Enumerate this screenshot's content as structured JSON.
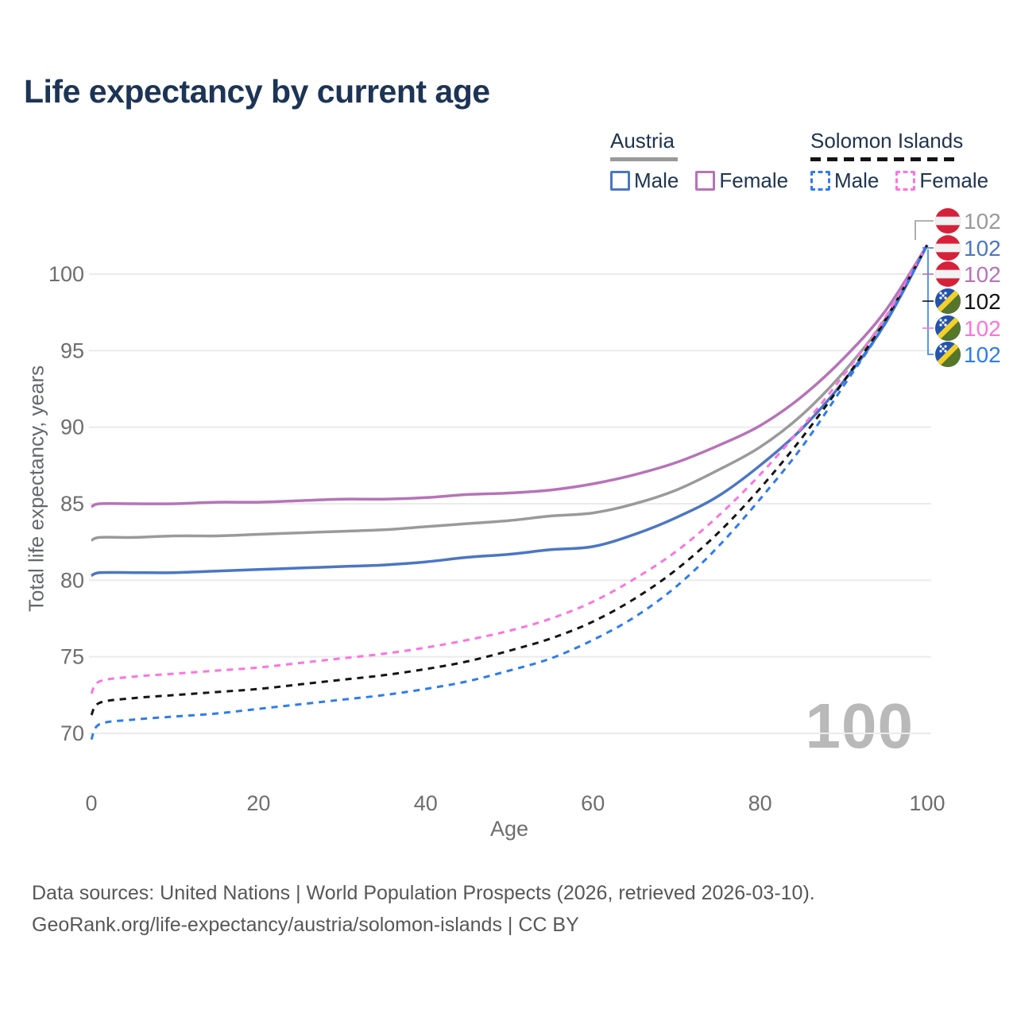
{
  "header": {
    "title": "Life expectancy by current age"
  },
  "legend": {
    "groups": [
      {
        "name": "Austria",
        "line_style": "solid",
        "line_color": "#9a9a9a",
        "items": [
          {
            "label": "Male",
            "color": "#4b76c5",
            "dashed": false
          },
          {
            "label": "Female",
            "color": "#b673b9",
            "dashed": false
          }
        ]
      },
      {
        "name": "Solomon Islands",
        "line_style": "dashed",
        "line_color": "#141414",
        "items": [
          {
            "label": "Male",
            "color": "#2e7ced",
            "dashed": true
          },
          {
            "label": "Female",
            "color": "#fc74de",
            "dashed": true
          }
        ]
      }
    ]
  },
  "chart_data": {
    "type": "line",
    "title": "Life expectancy by current age",
    "xlabel": "Age",
    "ylabel": "Total life expectancy, years",
    "x_ticks": [
      0,
      20,
      40,
      60,
      80,
      100
    ],
    "y_ticks": [
      70,
      75,
      80,
      85,
      90,
      95,
      100
    ],
    "xlim": [
      0,
      100
    ],
    "ylim": [
      68,
      103.5
    ],
    "grid": "horizontal",
    "legend_position": "top-right",
    "age_indicator": "100",
    "watermark": "100",
    "ages": [
      0,
      1,
      5,
      10,
      15,
      20,
      25,
      30,
      35,
      40,
      45,
      50,
      55,
      60,
      65,
      70,
      75,
      80,
      85,
      90,
      95,
      100
    ],
    "series": [
      {
        "id": "austria-all",
        "name": "Austria (both sexes)",
        "country": "Austria",
        "sex": "all",
        "color": "#9a9a9a",
        "dashed": false,
        "values": [
          82.6,
          82.8,
          82.8,
          82.9,
          82.9,
          83.0,
          83.1,
          83.2,
          83.3,
          83.5,
          83.7,
          83.9,
          84.2,
          84.4,
          85.0,
          85.9,
          87.2,
          88.7,
          90.8,
          93.6,
          97.1,
          101.9
        ]
      },
      {
        "id": "austria-male",
        "name": "Austria Male",
        "country": "Austria",
        "sex": "male",
        "color": "#4b76c5",
        "dashed": false,
        "values": [
          80.3,
          80.5,
          80.5,
          80.5,
          80.6,
          80.7,
          80.8,
          80.9,
          81.0,
          81.2,
          81.5,
          81.7,
          82.0,
          82.2,
          83.0,
          84.1,
          85.5,
          87.5,
          89.9,
          93.0,
          96.8,
          101.9
        ]
      },
      {
        "id": "austria-female",
        "name": "Austria Female",
        "country": "Austria",
        "sex": "female",
        "color": "#b673b9",
        "dashed": false,
        "values": [
          84.8,
          85.0,
          85.0,
          85.0,
          85.1,
          85.1,
          85.2,
          85.3,
          85.3,
          85.4,
          85.6,
          85.7,
          85.9,
          86.3,
          86.9,
          87.7,
          88.8,
          90.1,
          92.0,
          94.5,
          97.6,
          101.9
        ]
      },
      {
        "id": "solomon-all",
        "name": "Solomon Islands (both sexes)",
        "country": "Solomon Islands",
        "sex": "all",
        "color": "#141414",
        "dashed": true,
        "values": [
          71.2,
          72.0,
          72.3,
          72.5,
          72.7,
          72.9,
          73.2,
          73.5,
          73.8,
          74.2,
          74.7,
          75.4,
          76.2,
          77.3,
          78.8,
          80.7,
          83.1,
          86.0,
          89.3,
          93.0,
          97.0,
          101.9
        ]
      },
      {
        "id": "solomon-female",
        "name": "Solomon Islands Female",
        "country": "Solomon Islands",
        "sex": "female",
        "color": "#fc74de",
        "dashed": true,
        "values": [
          72.6,
          73.4,
          73.7,
          73.9,
          74.1,
          74.3,
          74.6,
          74.9,
          75.2,
          75.6,
          76.1,
          76.7,
          77.5,
          78.6,
          80.1,
          81.9,
          84.2,
          86.9,
          90.0,
          93.4,
          97.2,
          101.9
        ]
      },
      {
        "id": "solomon-male",
        "name": "Solomon Islands Male",
        "country": "Solomon Islands",
        "sex": "male",
        "color": "#2e7ced",
        "dashed": true,
        "values": [
          69.6,
          70.6,
          70.9,
          71.1,
          71.3,
          71.6,
          71.9,
          72.2,
          72.5,
          72.9,
          73.4,
          74.1,
          74.9,
          76.1,
          77.6,
          79.6,
          82.2,
          85.3,
          88.7,
          92.7,
          96.8,
          101.9
        ]
      }
    ],
    "end_labels": [
      {
        "value": "102",
        "color": "#9a9a9a",
        "flag": "austria"
      },
      {
        "value": "102",
        "color": "#4b76c5",
        "flag": "austria"
      },
      {
        "value": "102",
        "color": "#b673b9",
        "flag": "austria"
      },
      {
        "value": "102",
        "color": "#141414",
        "flag": "solomon"
      },
      {
        "value": "102",
        "color": "#fc74de",
        "flag": "solomon"
      },
      {
        "value": "102",
        "color": "#2e7ced",
        "flag": "solomon"
      }
    ],
    "flag_colors": {
      "austria_red": "#d6213a",
      "austria_white": "#f2f2f2",
      "solomon_blue": "#2253ae",
      "solomon_green": "#55762b",
      "solomon_yellow": "#f3d02a"
    }
  },
  "footer": {
    "line1": "Data sources: United Nations | World Population Prospects (2026, retrieved 2026-03-10).",
    "line2": "GeoRank.org/life-expectancy/austria/solomon-islands | CC BY"
  }
}
